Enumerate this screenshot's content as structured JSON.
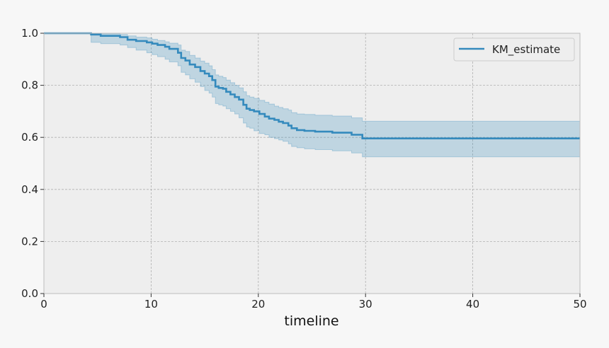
{
  "chart_data": {
    "type": "line",
    "title": "",
    "xlabel": "timeline",
    "ylabel": "",
    "xlim": [
      0,
      50
    ],
    "ylim": [
      0,
      1.0
    ],
    "xticks": [
      0,
      10,
      20,
      30,
      40,
      50
    ],
    "yticks": [
      0.0,
      0.2,
      0.4,
      0.6,
      0.8,
      1.0
    ],
    "xtick_labels": [
      "0",
      "10",
      "20",
      "30",
      "40",
      "50"
    ],
    "ytick_labels": [
      "0.0",
      "0.2",
      "0.4",
      "0.6",
      "0.8",
      "1.0"
    ],
    "grid": true,
    "legend": {
      "placement": "top-right",
      "entries": [
        "KM_estimate"
      ]
    },
    "colors": {
      "line": "#348abd",
      "band": "#348abd",
      "background": "#eeeeee",
      "grid": "#b0b0b0"
    },
    "series": [
      {
        "name": "KM_estimate",
        "step": true,
        "x": [
          0,
          4.4,
          5.3,
          7.1,
          7.8,
          8.6,
          9.6,
          10.1,
          10.6,
          11.3,
          11.7,
          12.5,
          12.8,
          13.2,
          13.6,
          14.1,
          14.6,
          15.0,
          15.4,
          15.7,
          16.0,
          16.3,
          16.7,
          17.0,
          17.4,
          17.8,
          18.2,
          18.6,
          18.9,
          19.2,
          19.6,
          20.1,
          20.6,
          21.0,
          21.5,
          21.9,
          22.3,
          22.8,
          23.1,
          23.6,
          24.3,
          25.3,
          26.9,
          28.7,
          29.7,
          50
        ],
        "y": [
          1.0,
          0.995,
          0.99,
          0.985,
          0.975,
          0.97,
          0.965,
          0.96,
          0.955,
          0.948,
          0.94,
          0.925,
          0.905,
          0.895,
          0.88,
          0.87,
          0.855,
          0.845,
          0.835,
          0.82,
          0.795,
          0.79,
          0.787,
          0.775,
          0.765,
          0.755,
          0.745,
          0.725,
          0.71,
          0.705,
          0.7,
          0.69,
          0.68,
          0.672,
          0.667,
          0.66,
          0.655,
          0.645,
          0.635,
          0.628,
          0.625,
          0.622,
          0.618,
          0.61,
          0.596,
          0.596
        ],
        "ci_lower": [
          1.0,
          0.965,
          0.96,
          0.955,
          0.945,
          0.935,
          0.925,
          0.918,
          0.91,
          0.9,
          0.89,
          0.875,
          0.85,
          0.84,
          0.825,
          0.812,
          0.795,
          0.78,
          0.77,
          0.755,
          0.73,
          0.725,
          0.72,
          0.71,
          0.7,
          0.69,
          0.675,
          0.655,
          0.64,
          0.635,
          0.625,
          0.615,
          0.61,
          0.6,
          0.595,
          0.59,
          0.585,
          0.575,
          0.565,
          0.56,
          0.556,
          0.553,
          0.548,
          0.54,
          0.525,
          0.525
        ],
        "ci_upper": [
          1.0,
          1.0,
          0.998,
          0.995,
          0.99,
          0.985,
          0.982,
          0.977,
          0.972,
          0.967,
          0.962,
          0.955,
          0.935,
          0.93,
          0.915,
          0.905,
          0.893,
          0.885,
          0.875,
          0.86,
          0.84,
          0.835,
          0.83,
          0.82,
          0.81,
          0.8,
          0.79,
          0.775,
          0.76,
          0.755,
          0.75,
          0.742,
          0.735,
          0.728,
          0.72,
          0.715,
          0.71,
          0.705,
          0.695,
          0.69,
          0.688,
          0.685,
          0.682,
          0.675,
          0.662,
          0.662
        ]
      }
    ]
  }
}
